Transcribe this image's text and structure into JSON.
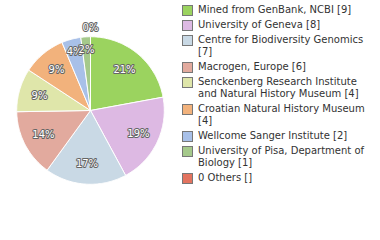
{
  "chart_data": {
    "type": "pie",
    "categories": [
      "Mined from GenBank, NCBI [9]",
      "University of Geneva [8]",
      "Centre for Biodiversity Genomics [7]",
      "Macrogen, Europe [6]",
      "Senckenberg Research Institute and Natural History Museum [4]",
      "Croatian Natural History Museum [4]",
      "Wellcome Sanger Institute [2]",
      "University of Pisa, Department of Biology [1]",
      "0 Others []"
    ],
    "values": [
      21,
      19,
      17,
      14,
      9,
      9,
      4,
      2,
      0
    ],
    "value_labels": [
      "21%",
      "19%",
      "17%",
      "14%",
      "9%",
      "9%",
      "4%",
      "2%",
      "0%"
    ],
    "colors": [
      "#9bd35f",
      "#ddb9e3",
      "#c9d9e5",
      "#e2aa9e",
      "#dfe6aa",
      "#f2b27c",
      "#a8c0e8",
      "#a5c98b",
      "#e3735f"
    ],
    "data_labels": true,
    "legend": "right"
  }
}
